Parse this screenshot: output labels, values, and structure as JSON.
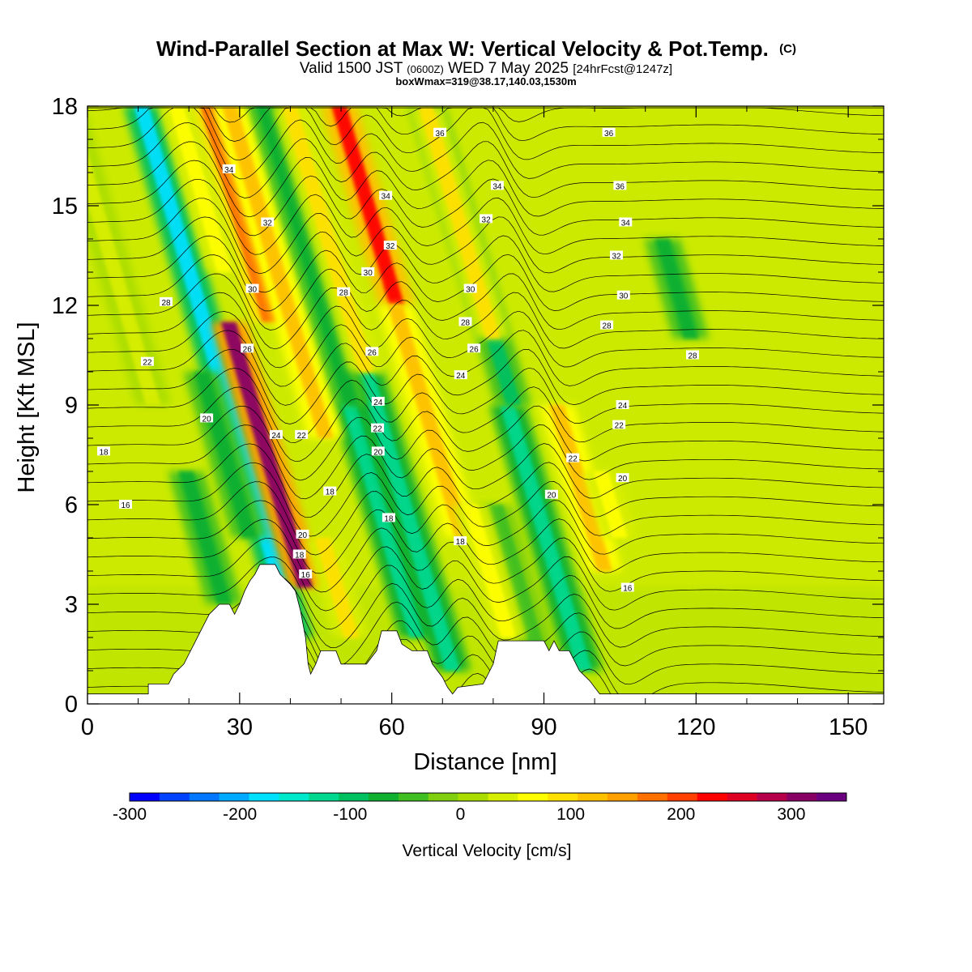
{
  "header": {
    "title": "Wind-Parallel Section at Max W: Vertical Velocity & Pot.Temp.",
    "copyright": "(C)",
    "valid_prefix": "Valid 1500 JST",
    "valid_utc": "(0600Z)",
    "valid_date": "WED 7 May 2025",
    "forecast": "[24hrFcst@1247z]",
    "boxw": "boxWmax=319@38.17,140.03,1530m"
  },
  "chart_data": {
    "type": "heatmap",
    "xlabel": "Distance [nm]",
    "ylabel": "Height [Kft MSL]",
    "xlim": [
      0,
      157
    ],
    "ylim": [
      0,
      18
    ],
    "x_ticks": [
      0,
      30,
      60,
      90,
      120,
      150
    ],
    "y_ticks": [
      0,
      3,
      6,
      9,
      12,
      15,
      18
    ],
    "grid": false,
    "colorbar": {
      "label": "Vertical Velocity [cm/s]",
      "range": [
        -300,
        350
      ],
      "tick_values": [
        -300,
        -200,
        -100,
        0,
        100,
        200,
        300
      ],
      "colors": [
        "#0000ff",
        "#0044ff",
        "#0077ff",
        "#00aaff",
        "#00e0ff",
        "#00e8cc",
        "#00d890",
        "#00c060",
        "#10b030",
        "#40c020",
        "#80d010",
        "#aadd00",
        "#d8ee00",
        "#ffff00",
        "#ffe000",
        "#ffc000",
        "#ffa000",
        "#ff7000",
        "#ff4000",
        "#ff0000",
        "#dd0022",
        "#b8004a",
        "#880066",
        "#6a0080"
      ]
    },
    "updraft_cores": [
      {
        "x": 36,
        "z_bottom": 11.5,
        "z_top": 18,
        "w": 180
      },
      {
        "x": 43,
        "z_bottom": 3.5,
        "z_top": 11.5,
        "w": 300
      },
      {
        "x": 47,
        "z_bottom": 8,
        "z_top": 18,
        "w": 110
      },
      {
        "x": 61,
        "z_bottom": 12,
        "z_top": 18,
        "w": 240
      },
      {
        "x": 55,
        "z_bottom": 10,
        "z_top": 18,
        "w": 90
      },
      {
        "x": 74,
        "z_bottom": 5,
        "z_top": 12,
        "w": 110
      },
      {
        "x": 80,
        "z_bottom": 11,
        "z_top": 18,
        "w": 95
      },
      {
        "x": 102,
        "z_bottom": 4,
        "z_top": 9,
        "w": 110
      },
      {
        "x": 105,
        "z_bottom": 5,
        "z_top": 7,
        "w": 60
      },
      {
        "x": 52,
        "z_bottom": 2,
        "z_top": 5,
        "w": 80
      },
      {
        "x": 83,
        "z_bottom": 2,
        "z_top": 6,
        "w": 60
      },
      {
        "x": 27,
        "z_bottom": 13,
        "z_top": 18,
        "w": 70
      },
      {
        "x": 13,
        "z_bottom": 9,
        "z_top": 18,
        "w": 35
      }
    ],
    "downdraft_cores": [
      {
        "x": 41,
        "z_bottom": 2,
        "z_top": 18,
        "w": -190
      },
      {
        "x": 65,
        "z_bottom": 2,
        "z_top": 18,
        "w": -130
      },
      {
        "x": 72,
        "z_bottom": 1,
        "z_top": 10,
        "w": -120
      },
      {
        "x": 98,
        "z_bottom": 1,
        "z_top": 9,
        "w": -130
      },
      {
        "x": 84,
        "z_bottom": 9,
        "z_top": 18,
        "w": -90
      },
      {
        "x": 52,
        "z_bottom": 9,
        "z_top": 18,
        "w": -80
      },
      {
        "x": 32,
        "z_bottom": 5,
        "z_top": 10,
        "w": -80
      },
      {
        "x": 27,
        "z_bottom": 3,
        "z_top": 7,
        "w": -60
      },
      {
        "x": 119,
        "z_bottom": 11,
        "z_top": 14,
        "w": -60
      },
      {
        "x": 90,
        "z_bottom": 1,
        "z_top": 6,
        "w": -50
      }
    ],
    "theta_levels": [
      16,
      18,
      20,
      22,
      24,
      26,
      28,
      30,
      32,
      34,
      36
    ],
    "theta_labels": [
      {
        "text": "16",
        "x": 7.5,
        "z": 6.0
      },
      {
        "text": "18",
        "x": 3.2,
        "z": 7.6
      },
      {
        "text": "20",
        "x": 23.5,
        "z": 8.6
      },
      {
        "text": "22",
        "x": 11.8,
        "z": 10.3
      },
      {
        "text": "28",
        "x": 15.5,
        "z": 12.1
      },
      {
        "text": "30",
        "x": 32.5,
        "z": 12.5
      },
      {
        "text": "32",
        "x": 35.5,
        "z": 14.5
      },
      {
        "text": "34",
        "x": 27.9,
        "z": 16.1
      },
      {
        "text": "26",
        "x": 31.5,
        "z": 10.7
      },
      {
        "text": "24",
        "x": 37.2,
        "z": 8.1
      },
      {
        "text": "22",
        "x": 42.2,
        "z": 8.1
      },
      {
        "text": "20",
        "x": 42.4,
        "z": 5.1
      },
      {
        "text": "18",
        "x": 41.8,
        "z": 4.5
      },
      {
        "text": "16",
        "x": 43.0,
        "z": 3.9
      },
      {
        "text": "18",
        "x": 47.8,
        "z": 6.4
      },
      {
        "text": "28",
        "x": 50.5,
        "z": 12.4
      },
      {
        "text": "30",
        "x": 55.3,
        "z": 13.0
      },
      {
        "text": "32",
        "x": 59.7,
        "z": 13.8
      },
      {
        "text": "34",
        "x": 58.8,
        "z": 15.3
      },
      {
        "text": "36",
        "x": 69.5,
        "z": 17.2
      },
      {
        "text": "26",
        "x": 56.1,
        "z": 10.6
      },
      {
        "text": "24",
        "x": 57.3,
        "z": 9.1
      },
      {
        "text": "22",
        "x": 57.2,
        "z": 8.3
      },
      {
        "text": "20",
        "x": 57.3,
        "z": 7.6
      },
      {
        "text": "18",
        "x": 59.4,
        "z": 5.6
      },
      {
        "text": "18",
        "x": 73.5,
        "z": 4.9
      },
      {
        "text": "24",
        "x": 73.6,
        "z": 9.9
      },
      {
        "text": "26",
        "x": 76.2,
        "z": 10.7
      },
      {
        "text": "28",
        "x": 74.5,
        "z": 11.5
      },
      {
        "text": "30",
        "x": 75.5,
        "z": 12.5
      },
      {
        "text": "32",
        "x": 78.6,
        "z": 14.6
      },
      {
        "text": "34",
        "x": 80.8,
        "z": 15.6
      },
      {
        "text": "36",
        "x": 102.8,
        "z": 17.2
      },
      {
        "text": "36",
        "x": 105.0,
        "z": 15.6
      },
      {
        "text": "34",
        "x": 106.1,
        "z": 14.5
      },
      {
        "text": "32",
        "x": 104.3,
        "z": 13.5
      },
      {
        "text": "30",
        "x": 105.7,
        "z": 12.3
      },
      {
        "text": "28",
        "x": 102.4,
        "z": 11.4
      },
      {
        "text": "28",
        "x": 119.3,
        "z": 10.5
      },
      {
        "text": "24",
        "x": 105.5,
        "z": 9.0
      },
      {
        "text": "22",
        "x": 104.8,
        "z": 8.4
      },
      {
        "text": "22",
        "x": 95.7,
        "z": 7.4
      },
      {
        "text": "20",
        "x": 91.5,
        "z": 6.3
      },
      {
        "text": "20",
        "x": 105.5,
        "z": 6.8
      },
      {
        "text": "16",
        "x": 106.5,
        "z": 3.5
      }
    ]
  }
}
